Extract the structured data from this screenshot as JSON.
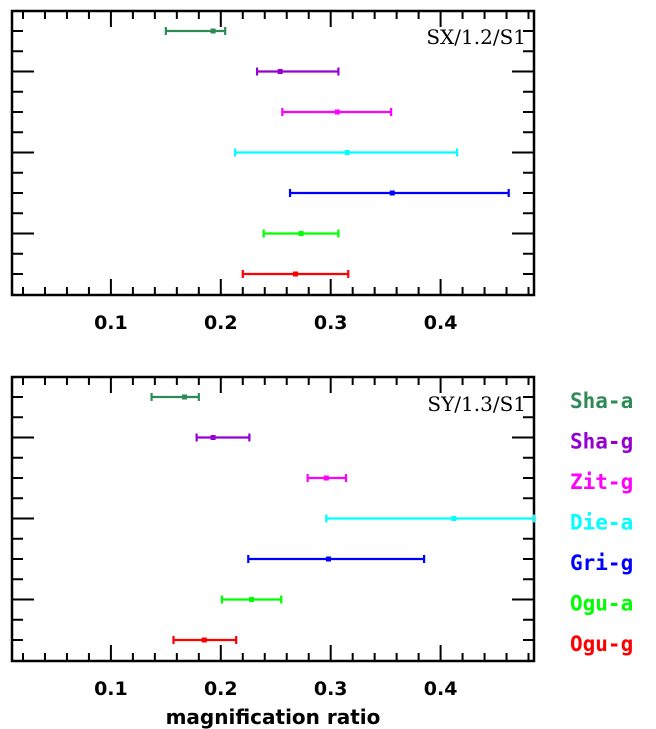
{
  "chart_data": [
    {
      "type": "errorbar",
      "title": "SX/1.2/S1",
      "xlabel": "",
      "ylabel": "",
      "xlim": [
        0.01,
        0.485
      ],
      "xticks": [
        0.1,
        0.2,
        0.3,
        0.4
      ],
      "xtick_labels": [
        "0.1",
        "0.2",
        "0.3",
        "0.4"
      ],
      "series": [
        {
          "name": "Sha-a",
          "color": "#2e8b57",
          "value": 0.193,
          "low": 0.15,
          "high": 0.204
        },
        {
          "name": "Sha-g",
          "color": "#9400d3",
          "value": 0.254,
          "low": 0.233,
          "high": 0.307
        },
        {
          "name": "Zit-g",
          "color": "#ff00ff",
          "value": 0.306,
          "low": 0.256,
          "high": 0.355
        },
        {
          "name": "Die-a",
          "color": "#00ffff",
          "value": 0.315,
          "low": 0.213,
          "high": 0.415
        },
        {
          "name": "Gri-g",
          "color": "#0000ff",
          "value": 0.356,
          "low": 0.263,
          "high": 0.462
        },
        {
          "name": "Ogu-a",
          "color": "#00ff00",
          "value": 0.273,
          "low": 0.239,
          "high": 0.307
        },
        {
          "name": "Ogu-g",
          "color": "#ff0000",
          "value": 0.268,
          "low": 0.22,
          "high": 0.316
        }
      ]
    },
    {
      "type": "errorbar",
      "title": "SY/1.3/S1",
      "xlabel": "magnification ratio",
      "ylabel": "",
      "xlim": [
        0.01,
        0.485
      ],
      "xticks": [
        0.1,
        0.2,
        0.3,
        0.4
      ],
      "xtick_labels": [
        "0.1",
        "0.2",
        "0.3",
        "0.4"
      ],
      "series": [
        {
          "name": "Sha-a",
          "color": "#2e8b57",
          "value": 0.167,
          "low": 0.137,
          "high": 0.18
        },
        {
          "name": "Sha-g",
          "color": "#9400d3",
          "value": 0.193,
          "low": 0.178,
          "high": 0.226
        },
        {
          "name": "Zit-g",
          "color": "#ff00ff",
          "value": 0.296,
          "low": 0.279,
          "high": 0.314
        },
        {
          "name": "Die-a",
          "color": "#00ffff",
          "value": 0.412,
          "low": 0.296,
          "high": 0.485
        },
        {
          "name": "Gri-g",
          "color": "#0000ff",
          "value": 0.298,
          "low": 0.225,
          "high": 0.385
        },
        {
          "name": "Ogu-a",
          "color": "#00ff00",
          "value": 0.228,
          "low": 0.201,
          "high": 0.255
        },
        {
          "name": "Ogu-g",
          "color": "#ff0000",
          "value": 0.185,
          "low": 0.157,
          "high": 0.214
        }
      ]
    }
  ],
  "legend": [
    {
      "label": "Sha-a",
      "color": "#2e8b57"
    },
    {
      "label": "Sha-g",
      "color": "#9400d3"
    },
    {
      "label": "Zit-g",
      "color": "#ff00ff"
    },
    {
      "label": "Die-a",
      "color": "#00ffff"
    },
    {
      "label": "Gri-g",
      "color": "#0000ff"
    },
    {
      "label": "Ogu-a",
      "color": "#00ff00"
    },
    {
      "label": "Ogu-g",
      "color": "#ff0000"
    }
  ]
}
